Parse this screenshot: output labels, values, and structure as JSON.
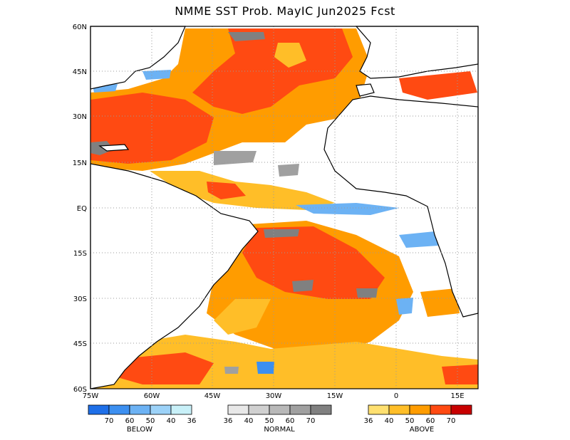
{
  "title": "NMME SST Prob. MayIC  Jun2025 Fcst",
  "lat_labels": [
    "60N",
    "45N",
    "30N",
    "15N",
    "EQ",
    "15S",
    "30S",
    "45S",
    "60S"
  ],
  "lon_labels": [
    "75W",
    "60W",
    "45W",
    "30W",
    "15W",
    "0",
    "15E"
  ],
  "legend": {
    "below": {
      "title": "BELOW",
      "colors": [
        "#1e6fe8",
        "#3c8ff0",
        "#6cb2f4",
        "#9cd2f8",
        "#c8f0f8"
      ],
      "labels": [
        "70",
        "60",
        "50",
        "40",
        "36"
      ]
    },
    "normal": {
      "title": "NORMAL",
      "colors": [
        "#e8e8e8",
        "#d0d0d0",
        "#b8b8b8",
        "#a0a0a0",
        "#808080"
      ],
      "labels": [
        "36",
        "40",
        "50",
        "60",
        "70"
      ]
    },
    "above": {
      "title": "ABOVE",
      "colors": [
        "#ffe070",
        "#ffbe28",
        "#ff9c00",
        "#ff4a12",
        "#c80000"
      ],
      "labels": [
        "36",
        "40",
        "50",
        "60",
        "70"
      ]
    }
  },
  "colors": {
    "land": "#ffffff",
    "coast": "#000000",
    "grid": "#9a9a9a"
  }
}
